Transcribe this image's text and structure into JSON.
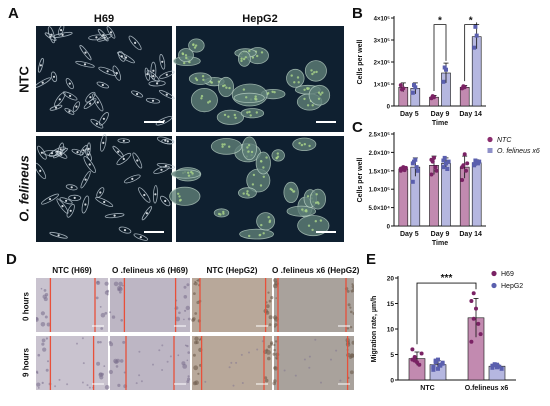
{
  "panel_labels": {
    "a": "A",
    "b": "B",
    "c": "C",
    "d": "D",
    "e": "E"
  },
  "panel_a": {
    "columns": [
      "H69",
      "HepG2"
    ],
    "rows": [
      "NTC",
      "O. felineus"
    ],
    "scalebar_color": "#ffffff"
  },
  "panel_d": {
    "columns": [
      "NTC (H69)",
      "O .felineus x6 (H69)",
      "NTC (HepG2)",
      "O .felineus x6 (HepG2)"
    ],
    "rows": [
      "0 hours",
      "9 hours"
    ],
    "edge_color": "#e8503a"
  },
  "legend": {
    "items": [
      {
        "label": "NTC",
        "color": "#8b2d6e",
        "marker": "circle"
      },
      {
        "label": "O. felineus x6",
        "color": "#8f91c9",
        "marker": "square"
      }
    ]
  },
  "chart_data": [
    {
      "id": "B",
      "type": "bar",
      "categories": [
        "Day 5",
        "Day 9",
        "Day 14"
      ],
      "xlabel": "Time",
      "ylabel": "Cells per well",
      "ylim": [
        0,
        400000
      ],
      "yticks": [
        "0",
        "1×10⁵",
        "2×10⁵",
        "3×10⁵",
        "4×10⁵"
      ],
      "ytick_values": [
        0,
        100000,
        200000,
        300000,
        400000
      ],
      "series": [
        {
          "name": "NTC",
          "color": "#c28ab0",
          "values": [
            85000,
            40000,
            85000
          ],
          "errors": [
            20000,
            8000,
            8000
          ],
          "points": [
            [
              95000,
              75000,
              80000
            ],
            [
              35000,
              45000,
              40000
            ],
            [
              80000,
              90000,
              85000
            ]
          ]
        },
        {
          "name": "O. felineus x6",
          "color": "#b5b7e0",
          "values": [
            80000,
            150000,
            315000
          ],
          "errors": [
            25000,
            45000,
            55000
          ],
          "points": [
            [
              60000,
              95000,
              85000
            ],
            [
              110000,
              175000,
              165000
            ],
            [
              265000,
              360000,
              320000
            ]
          ]
        }
      ],
      "significance": [
        {
          "category": "Day 9",
          "label": "*"
        },
        {
          "category": "Day 14",
          "label": "*"
        }
      ],
      "legend": "none"
    },
    {
      "id": "C",
      "type": "bar",
      "categories": [
        "Day 5",
        "Day 9",
        "Day 14"
      ],
      "xlabel": "Time",
      "ylabel": "Cells per well",
      "ylim": [
        0,
        250000
      ],
      "yticks": [
        "0",
        "5.0×10⁴",
        "1.0×10⁵",
        "1.5×10⁵",
        "2.0×10⁵",
        "2.5×10⁵"
      ],
      "ytick_values": [
        0,
        50000,
        100000,
        150000,
        200000,
        250000
      ],
      "series": [
        {
          "name": "NTC",
          "color": "#c28ab0",
          "values": [
            155000,
            165000,
            160000
          ],
          "errors": [
            5000,
            25000,
            30000
          ],
          "points": [
            [
              150000,
              155000,
              160000,
              152000,
              158000,
              156000
            ],
            [
              140000,
              175000,
              185000,
              160000,
              150000,
              180000
            ],
            [
              125000,
              165000,
              195000,
              150000,
              170000,
              160000
            ]
          ]
        },
        {
          "name": "O. felineus x6",
          "color": "#b5b7e0",
          "values": [
            160000,
            170000,
            172000
          ],
          "errors": [
            25000,
            15000,
            8000
          ],
          "points": [
            [
              120000,
              175000,
              180000,
              160000,
              150000,
              170000
            ],
            [
              160000,
              185000,
              170000,
              155000,
              175000,
              178000
            ],
            [
              165000,
              178000,
              172000,
              170000,
              175000,
              168000
            ]
          ]
        }
      ],
      "legend": "right"
    },
    {
      "id": "E",
      "type": "bar",
      "categories": [
        "NTC",
        "O.felineus x6"
      ],
      "ylabel": "Migration rate, µm/h",
      "ylim": [
        0,
        20
      ],
      "yticks": [
        "0",
        "5",
        "10",
        "15",
        "20"
      ],
      "ytick_values": [
        0,
        5,
        10,
        15,
        20
      ],
      "series": [
        {
          "name": "H69",
          "color": "#c28ab0",
          "dot_color": "#7a2264",
          "values": [
            4.2,
            12.2
          ],
          "errors": [
            1.3,
            3.8
          ],
          "points": [
            [
              6.0,
              4.5,
              3.5,
              3.0,
              5.2,
              4.0,
              3.8
            ],
            [
              15.5,
              17.0,
              14.0,
              11.0,
              9.0,
              7.5,
              12.0
            ]
          ]
        },
        {
          "name": "HepG2",
          "color": "#b5b7e0",
          "dot_color": "#5a5fae",
          "values": [
            3.0,
            2.7
          ],
          "errors": [
            0.8,
            0.4
          ],
          "points": [
            [
              2.0,
              3.5,
              4.0,
              2.8,
              3.2,
              2.5,
              3.8,
              2.2,
              3.0,
              3.4,
              2.6,
              3.7
            ],
            [
              2.4,
              2.9,
              3.0,
              2.6,
              2.2,
              2.8,
              3.1,
              2.5
            ]
          ]
        }
      ],
      "significance": [
        {
          "between": [
            "NTC/H69",
            "O.felineus x6/H69"
          ],
          "label": "***"
        }
      ],
      "legend": "top-right"
    }
  ]
}
